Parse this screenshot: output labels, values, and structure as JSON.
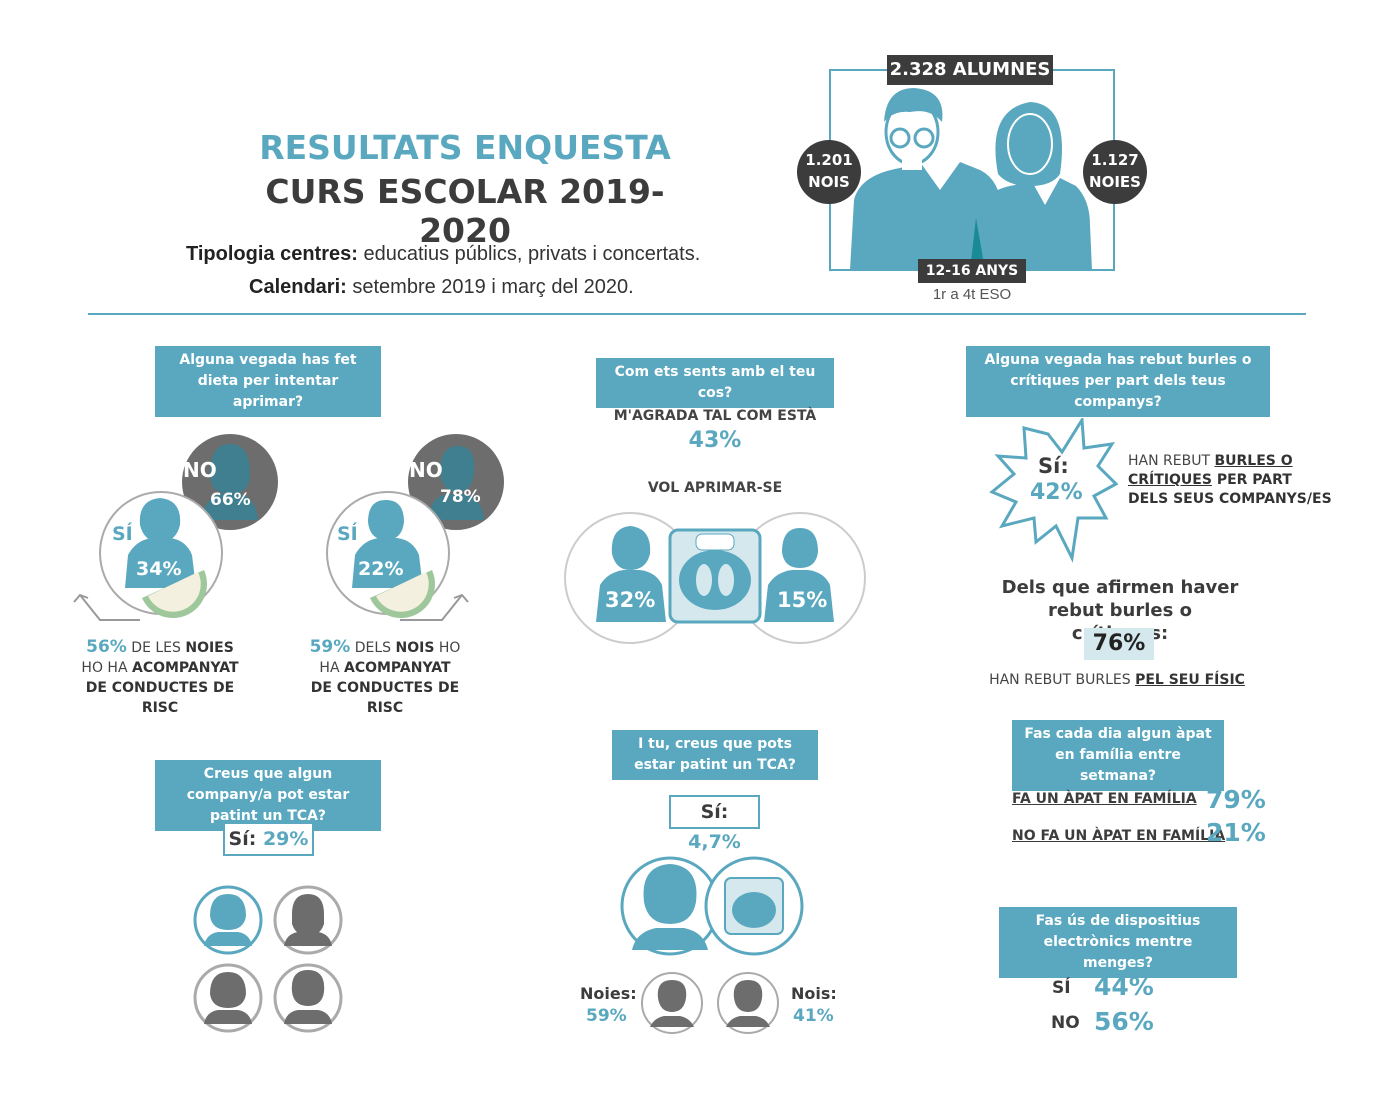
{
  "header": {
    "title_line1": "RESULTATS ENQUESTA",
    "title_line2": "CURS ESCOLAR 2019-2020",
    "tipologia_label": "Tipologia centres:",
    "tipologia_value": " educatius públics, privats i concertats.",
    "calendari_label": "Calendari:",
    "calendari_value": " setembre 2019 i març del 2020."
  },
  "sample": {
    "total": "2.328 ALUMNES",
    "boys_count": "1.201",
    "boys_label": "NOIS",
    "girls_count": "1.127",
    "girls_label": "NOIES",
    "age_range": "12-16 ANYS",
    "grades": "1r a 4t ESO"
  },
  "diet": {
    "question": "Alguna vegada has fet dieta per intentar aprimar?",
    "si_label": "SÍ",
    "no_label": "NO",
    "girls_yes": "34%",
    "girls_no": "66%",
    "boys_yes": "22%",
    "boys_no": "78%",
    "girls_risk_pct": "56%",
    "girls_risk_a": " DE LES ",
    "girls_risk_b": "NOIES",
    "girls_risk_c": "HO HA ",
    "girls_risk_d": "ACOMPANYAT",
    "girls_risk_e": "DE CONDUCTES DE RISC",
    "boys_risk_pct": "59%",
    "boys_risk_a": " DELS ",
    "boys_risk_b": "NOIS",
    "boys_risk_c": " HO",
    "boys_risk_d": "HA ",
    "boys_risk_e": "ACOMPANYAT",
    "boys_risk_f": "DE CONDUCTES DE RISC"
  },
  "body": {
    "question": "Com ets sents amb el teu cos?",
    "likes_label": "M'AGRADA TAL COM ESTÀ",
    "likes_pct": "43%",
    "lose_label": "VOL APRIMAR-SE",
    "girls_pct": "32%",
    "boys_pct": "15%"
  },
  "bullying": {
    "question": "Alguna vegada has rebut burles o crítiques per part dels teus companys?",
    "si_label": "Sí:",
    "si_pct": "42%",
    "desc_a": "HAN REBUT ",
    "desc_b": "BURLES O",
    "desc_c": "CRÍTIQUES",
    "desc_d": " PER PART",
    "desc_e": "DELS SEUS COMPANYS/ES",
    "followup_line1": "Dels que afirmen haver",
    "followup_line2": "rebut burles o crítiques:",
    "physical_pct": "76%",
    "physical_a": "HAN REBUT BURLES ",
    "physical_b": "PEL SEU FÍSIC"
  },
  "tca_peer": {
    "question": "Creus que algun company/a pot estar patint un TCA?",
    "si_label": "Sí:",
    "si_pct": " 29%"
  },
  "tca_self": {
    "question": "I tu, creus que pots estar patint un TCA?",
    "si_label": "Sí:",
    "si_pct": " 4,7%",
    "girls_label": "Noies:",
    "girls_pct": "59%",
    "boys_label": "Nois:",
    "boys_pct": "41%"
  },
  "family_meal": {
    "question": "Fas cada dia algun àpat en família entre setmana?",
    "yes_label": "FA UN ÀPAT EN FAMÍLIA",
    "yes_pct": "79%",
    "no_label": "NO FA UN ÀPAT EN FAMÍLIA",
    "no_pct": "21%"
  },
  "devices": {
    "question": "Fas ús de dispositius electrònics mentre menges?",
    "yes_label": "SÍ",
    "yes_pct": "44%",
    "no_label": "NO",
    "no_pct": "56%"
  },
  "chart_data": [
    {
      "type": "pie",
      "title": "Alguna vegada has fet dieta per intentar aprimar? (Noies)",
      "categories": [
        "SÍ",
        "NO"
      ],
      "values": [
        34,
        66
      ]
    },
    {
      "type": "pie",
      "title": "Alguna vegada has fet dieta per intentar aprimar? (Nois)",
      "categories": [
        "SÍ",
        "NO"
      ],
      "values": [
        22,
        78
      ]
    },
    {
      "type": "bar",
      "title": "Com ets sents amb el teu cos?",
      "categories": [
        "M'AGRADA TAL COM ESTÀ",
        "VOL APRIMAR-SE (Noies)",
        "VOL APRIMAR-SE (Nois)"
      ],
      "values": [
        43,
        32,
        15
      ]
    },
    {
      "type": "bar",
      "title": "Alguna vegada has rebut burles o crítiques per part dels teus companys?",
      "categories": [
        "Sí",
        "PEL SEU FÍSIC"
      ],
      "values": [
        42,
        76
      ]
    },
    {
      "type": "bar",
      "title": "Creus que algun company/a pot estar patint un TCA?",
      "categories": [
        "Sí"
      ],
      "values": [
        29
      ]
    },
    {
      "type": "bar",
      "title": "I tu, creus que pots estar patint un TCA?",
      "categories": [
        "Sí",
        "Noies",
        "Nois"
      ],
      "values": [
        4.7,
        59,
        41
      ]
    },
    {
      "type": "bar",
      "title": "Fas cada dia algun àpat en família entre setmana?",
      "categories": [
        "FA UN ÀPAT EN FAMÍLIA",
        "NO FA UN ÀPAT EN FAMÍLIA"
      ],
      "values": [
        79,
        21
      ]
    },
    {
      "type": "bar",
      "title": "Fas ús de dispositius electrònics mentre menges?",
      "categories": [
        "SÍ",
        "NO"
      ],
      "values": [
        44,
        56
      ]
    }
  ],
  "colors": {
    "teal": "#5aa8bf",
    "dark_teal": "#3f7f8f",
    "grey": "#6d6d6d",
    "dark": "#3c3c3c",
    "light": "#d4e8ee"
  }
}
